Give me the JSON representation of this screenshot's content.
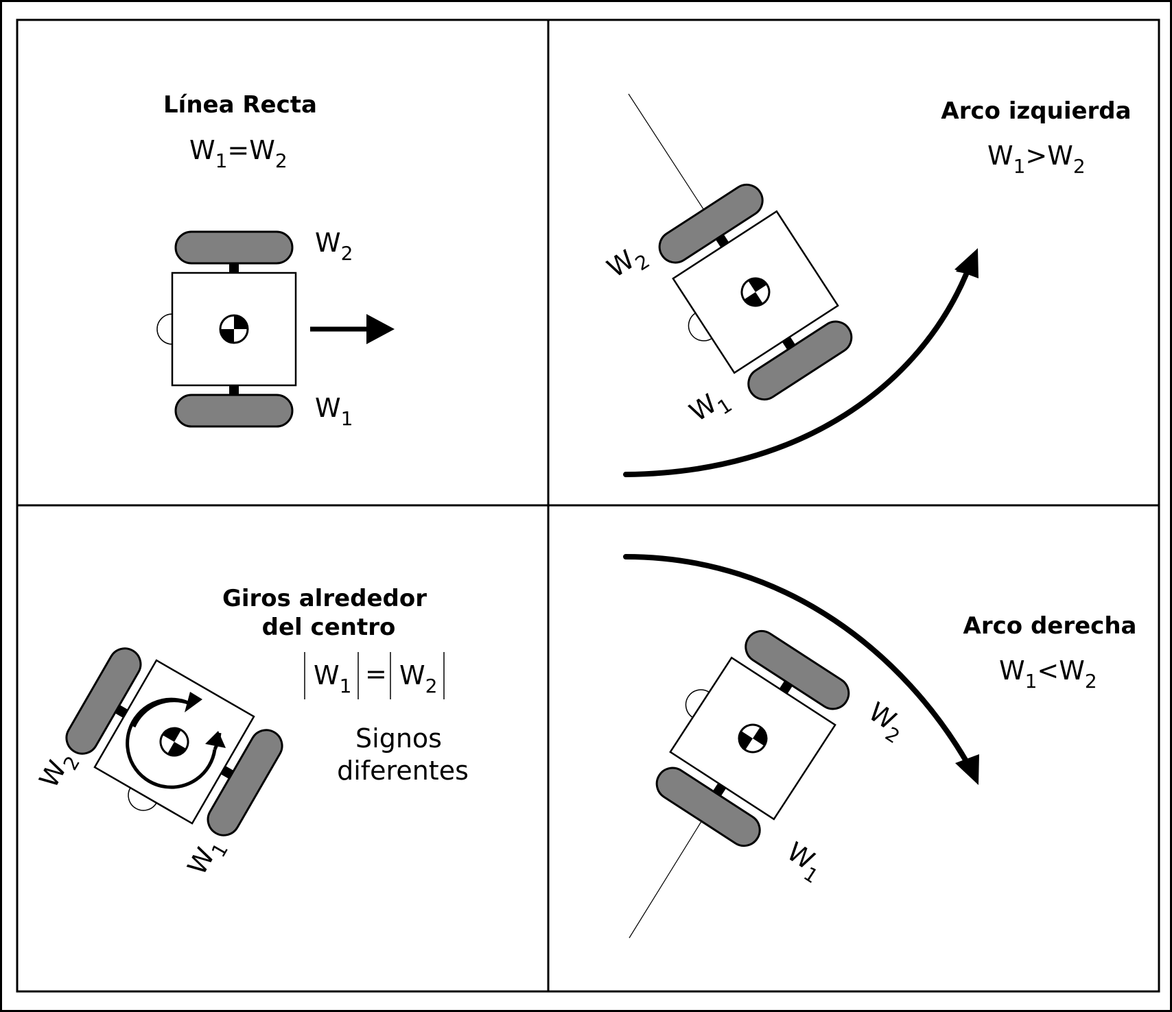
{
  "panels": {
    "straight": {
      "title": "Línea Recta",
      "eq_w1": "W",
      "eq_s1": "1",
      "eq_op": "=",
      "eq_w2": "W",
      "eq_s2": "2"
    },
    "arc_left": {
      "title": "Arco izquierda",
      "eq_w1": "W",
      "eq_s1": "1",
      "eq_op": ">",
      "eq_w2": "W",
      "eq_s2": "2"
    },
    "spin": {
      "title_line1": "Giros alrededor",
      "title_line2": "del centro",
      "eq_w1": "W",
      "eq_s1": "1",
      "eq_op": "=",
      "eq_w2": "W",
      "eq_s2": "2",
      "note_line1": "Signos",
      "note_line2": "diferentes"
    },
    "arc_right": {
      "title": "Arco derecha",
      "eq_w1": "W",
      "eq_s1": "1",
      "eq_op": "<",
      "eq_w2": "W",
      "eq_s2": "2"
    }
  },
  "wheel_labels": {
    "w": "W",
    "sub1": "1",
    "sub2": "2"
  },
  "colors": {
    "wheel": "#808080",
    "line": "#000000",
    "background": "#ffffff"
  }
}
